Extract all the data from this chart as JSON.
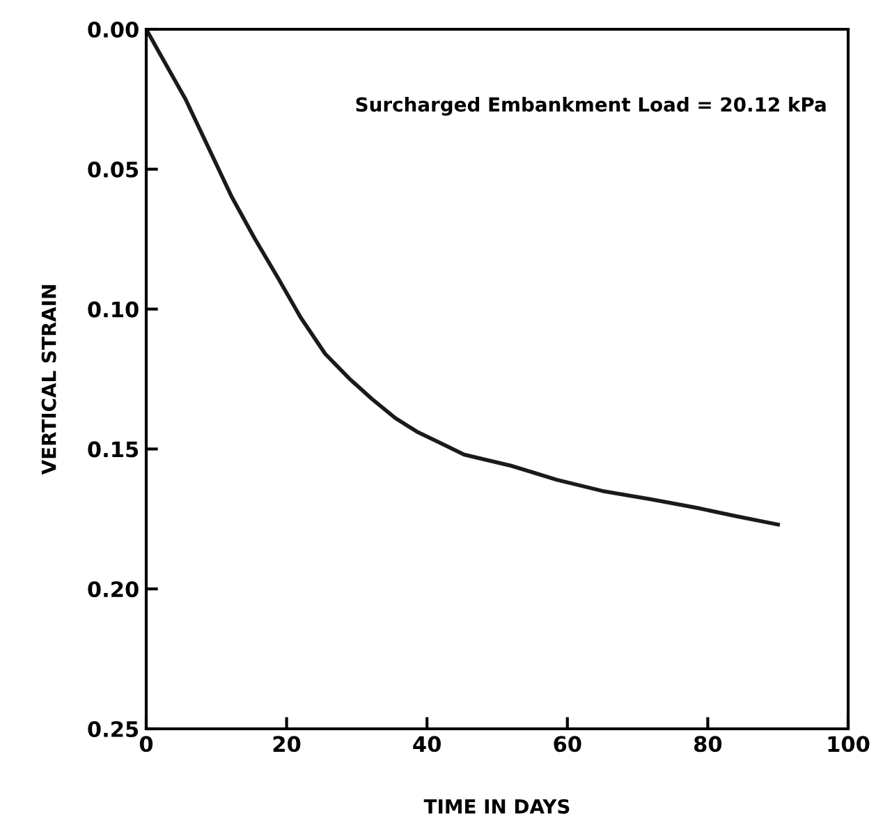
{
  "chart_data": {
    "type": "line",
    "xlabel": "TIME IN DAYS",
    "ylabel": "VERTICAL STRAIN",
    "annotations": [
      "Surcharged Embankment Load = 20.12 kPa"
    ],
    "series": [
      {
        "color": "#1a1a1a",
        "x": [
          0,
          2,
          5.6,
          9,
          12.2,
          15.5,
          18.8,
          22,
          25.5,
          29,
          32.1,
          35.5,
          38.7,
          42,
          45.3,
          52,
          58.5,
          65,
          72,
          78.4,
          84,
          90
        ],
        "values": [
          0,
          0.009,
          0.025,
          0.043,
          0.06,
          0.075,
          0.089,
          0.103,
          0.116,
          0.125,
          0.132,
          0.139,
          0.144,
          0.148,
          0.152,
          0.156,
          0.161,
          0.165,
          0.168,
          0.171,
          0.174,
          0.177
        ]
      }
    ],
    "xlim": [
      0,
      100
    ],
    "xticks": [
      0,
      20,
      40,
      60,
      80,
      100
    ],
    "ylim": [
      0.25,
      0
    ],
    "yticks": [
      {
        "value": 0,
        "label": "0.00"
      },
      {
        "value": 0.05,
        "label": "0.05"
      },
      {
        "value": 0.1,
        "label": "0.10"
      },
      {
        "value": 0.15,
        "label": "0.15"
      },
      {
        "value": 0.2,
        "label": "0.20"
      },
      {
        "value": 0.25,
        "label": "0.25"
      }
    ],
    "grid": false,
    "legend": false,
    "marker": "none",
    "line_style": "solid"
  }
}
